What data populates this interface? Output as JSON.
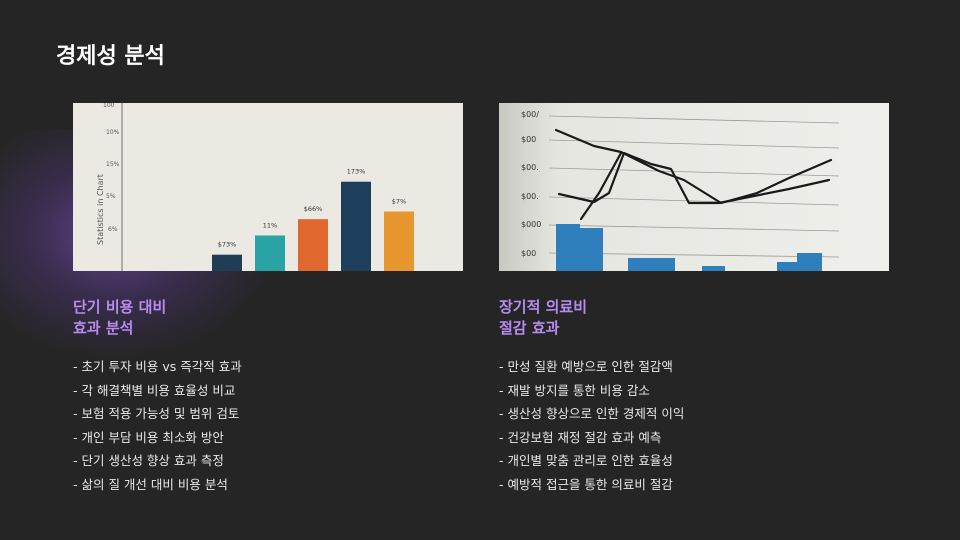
{
  "slide": {
    "title": "경제성 분석"
  },
  "left": {
    "image": {
      "name": "bar-chart-photo",
      "y_labels": [
        "100",
        "10%",
        "15%",
        "5%",
        "6%"
      ],
      "side_text": "Statistics in Chart",
      "bar_labels": [
        "$73%",
        "11%",
        "$66%",
        "173%",
        "$7%"
      ],
      "bar_values": [
        0.17,
        0.37,
        0.54,
        0.93,
        0.62
      ],
      "bar_colors": [
        "#1f3e55",
        "#2aa3a4",
        "#e0672e",
        "#1e3f5c",
        "#e8962f"
      ]
    },
    "title_lines": [
      "단기 비용 대비",
      "효과 분석"
    ],
    "bullets": [
      "- 초기 투자 비용 vs 즉각적 효과",
      "- 각 해결책별 비용 효율성 비교",
      "- 보험 적용 가능성 및 범위 검토",
      "- 개인 부담 비용 최소화 방안",
      "- 단기 생산성 향상 효과 측정",
      "- 삶의 질 개선 대비 비용 분석"
    ]
  },
  "right": {
    "image": {
      "name": "line-chart-photo",
      "y_labels": [
        "$00/",
        "$00",
        "$00.",
        "$00.",
        "$000",
        "$00"
      ]
    },
    "title_lines": [
      "장기적 의료비",
      "절감 효과"
    ],
    "bullets": [
      "- 만성 질환 예방으로 인한 절감액",
      "- 재발 방지를 통한 비용 감소",
      "- 생산성 향상으로 인한 경제적 이익",
      "- 건강보험 재정 절감 효과 예측",
      "- 개인별 맞춤 관리로 인한 효율성",
      "- 예방적 접근을 통한 의료비 절감"
    ]
  }
}
